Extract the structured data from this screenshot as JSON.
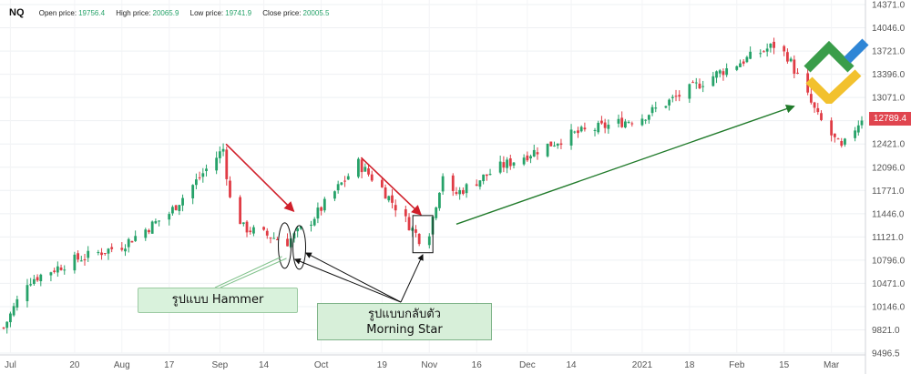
{
  "header": {
    "symbol": "NQ",
    "open_label": "Open price:",
    "open_value": "19756.4",
    "high_label": "High price:",
    "high_value": "20065.9",
    "low_label": "Low price:",
    "low_value": "19741.9",
    "close_label": "Close price:",
    "close_value": "20005.5"
  },
  "annotations": {
    "hammer": "รูปแบบ Hammer",
    "morning_line1": "รูปแบบกลับตัว",
    "morning_line2": "Morning Star"
  },
  "last_price_label": "12789.4",
  "colors": {
    "up": "#26a269",
    "down": "#e03c45",
    "arrow_red": "#d01f2a",
    "arrow_green": "#207a2a",
    "annotation_bg": "#d9f2dc"
  },
  "chart_data": {
    "type": "candlestick",
    "title": "",
    "ylim": [
      9496.5,
      14371.0
    ],
    "y_ticks": [
      "14371.0",
      "14046.0",
      "13721.0",
      "13396.0",
      "13071.0",
      "12746.0",
      "12421.0",
      "12096.0",
      "11771.0",
      "11446.0",
      "11121.0",
      "10796.0",
      "10471.0",
      "10146.0",
      "9821.0",
      "9496.5"
    ],
    "x_ticks": [
      "Jul",
      "20",
      "Aug",
      "17",
      "Sep",
      "14",
      "Oct",
      "19",
      "Nov",
      "16",
      "Dec",
      "14",
      "2021",
      "18",
      "Feb",
      "15",
      "Mar"
    ],
    "trend_waypoints": [
      {
        "date": "2020-06-29",
        "close": 9850
      },
      {
        "date": "2020-07-06",
        "close": 10500
      },
      {
        "date": "2020-07-20",
        "close": 10800
      },
      {
        "date": "2020-08-03",
        "close": 11000
      },
      {
        "date": "2020-08-17",
        "close": 11450
      },
      {
        "date": "2020-09-02",
        "close": 12350
      },
      {
        "date": "2020-09-04",
        "close": 11650
      },
      {
        "date": "2020-09-08",
        "close": 11250
      },
      {
        "date": "2020-09-21",
        "close": 11050
      },
      {
        "date": "2020-09-28",
        "close": 11350
      },
      {
        "date": "2020-10-12",
        "close": 12150
      },
      {
        "date": "2020-10-19",
        "close": 11800
      },
      {
        "date": "2020-10-30",
        "close": 11100
      },
      {
        "date": "2020-11-02",
        "close": 11200
      },
      {
        "date": "2020-11-06",
        "close": 12000
      },
      {
        "date": "2020-11-09",
        "close": 11700
      },
      {
        "date": "2020-11-23",
        "close": 12100
      },
      {
        "date": "2020-12-14",
        "close": 12550
      },
      {
        "date": "2021-01-04",
        "close": 12800
      },
      {
        "date": "2021-01-26",
        "close": 13400
      },
      {
        "date": "2021-02-12",
        "close": 13800
      },
      {
        "date": "2021-02-16",
        "close": 13650
      },
      {
        "date": "2021-02-25",
        "close": 12800
      },
      {
        "date": "2021-03-04",
        "close": 12350
      },
      {
        "date": "2021-03-10",
        "close": 12789.4
      }
    ],
    "patterns": [
      {
        "name": "รูปแบบ Hammer",
        "date": "2020-09-21"
      },
      {
        "name": "Morning Star",
        "date": "2020-10-30"
      }
    ]
  }
}
